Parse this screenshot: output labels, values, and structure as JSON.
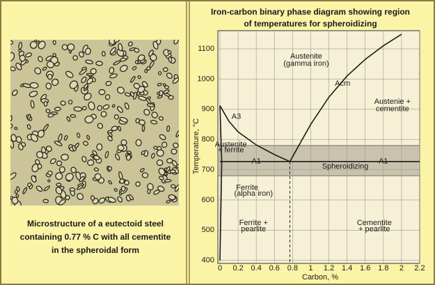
{
  "chart_data": {
    "type": "line",
    "title_lines": [
      "Iron-carbon binary phase diagram showing region",
      "of temperatures for spheroidizing"
    ],
    "caption_lines": [
      "Microstructure of a eutectoid steel",
      "containing 0.77 % C with all cementite",
      "in the spheroidal form"
    ],
    "x_label": "Carbon, %",
    "y_label": "Temperature, °C",
    "xlim": [
      0,
      2.2
    ],
    "ylim": [
      390,
      1160
    ],
    "xticks": [
      0,
      0.2,
      0.4,
      0.6,
      0.8,
      1,
      1.2,
      1.4,
      1.6,
      1.8,
      2,
      2.2
    ],
    "yticks": [
      400,
      500,
      600,
      700,
      800,
      900,
      1000,
      1100
    ],
    "grid": true,
    "color": "#1a1a1a",
    "lines": [
      {
        "x": [
          0,
          0.1,
          0.2,
          0.4,
          0.6,
          0.77
        ],
        "values": [
          912,
          860,
          825,
          782,
          750,
          727
        ]
      },
      {
        "x": [
          0.77,
          1.0,
          1.2,
          1.4,
          1.6,
          1.8,
          2.0
        ],
        "values": [
          727,
          850,
          940,
          1010,
          1065,
          1110,
          1148
        ]
      },
      {
        "x": [
          0,
          0.02,
          0.01,
          0
        ],
        "values": [
          912,
          727,
          560,
          400
        ]
      },
      {
        "x": [
          0,
          2.2
        ],
        "values": [
          727,
          727
        ]
      }
    ],
    "band": [
      680,
      780
    ],
    "band_color": "#c9c3ae",
    "eutectoid": {
      "x": 0.77,
      "temp": 727
    },
    "annotations": [
      "Austenite",
      "(gamma iron)",
      "Acm",
      "Austenie +",
      "cementite",
      "A3",
      "Austenite",
      "+ ferrite",
      "A1",
      "Spheroidizing",
      "A1",
      "Ferrite",
      "(alpha iron)",
      "Ferrite +",
      "pearlite",
      "Cementite",
      "+ pearlite"
    ]
  }
}
